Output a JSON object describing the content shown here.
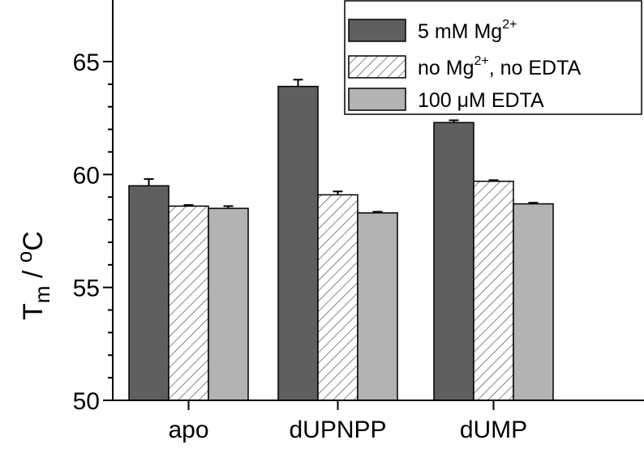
{
  "chart_data": {
    "type": "bar",
    "categories": [
      "apo",
      "dUPNPP",
      "dUMP"
    ],
    "series": [
      {
        "name": "5 mM Mg",
        "superscript": "2+",
        "values": [
          59.5,
          63.9,
          62.3
        ],
        "errors": [
          0.3,
          0.3,
          0.1
        ],
        "color": "#5f5f5f",
        "pattern": "solid"
      },
      {
        "name": "no Mg",
        "superscript": "2+",
        "name_suffix": ", no EDTA",
        "values": [
          58.6,
          59.1,
          59.7
        ],
        "errors": [
          0.05,
          0.15,
          0.05
        ],
        "color": "#ffffff",
        "pattern": "hatch"
      },
      {
        "name": "100 μM EDTA",
        "values": [
          58.5,
          58.3,
          58.7
        ],
        "errors": [
          0.1,
          0.05,
          0.05
        ],
        "color": "#b3b3b3",
        "pattern": "solid"
      }
    ],
    "ylabel": {
      "main": "T",
      "sub": "m",
      "sep": " / ",
      "sup": "o",
      "unit": "C"
    },
    "ylim": [
      50,
      65
    ],
    "yticks": [
      50,
      55,
      60,
      65
    ],
    "legend_position": "top-right"
  }
}
